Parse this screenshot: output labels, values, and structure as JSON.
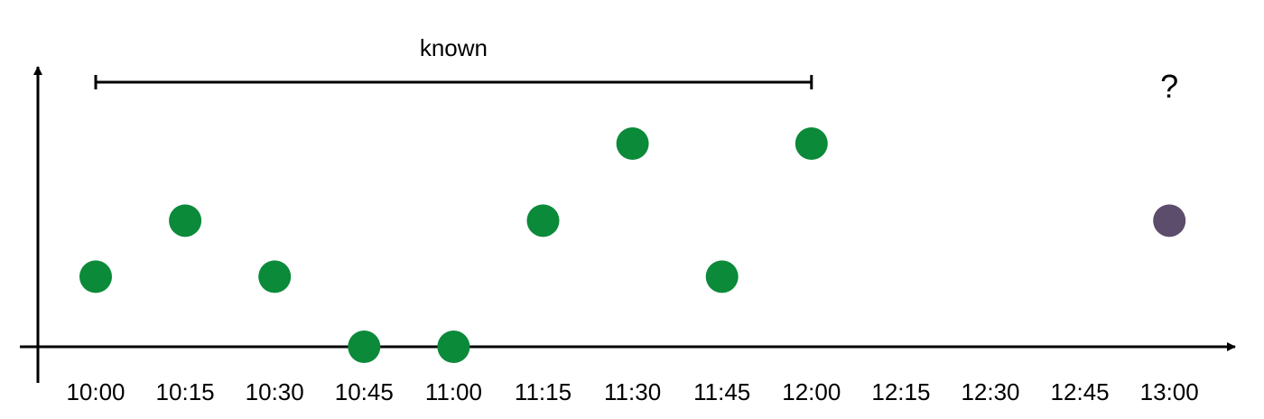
{
  "chart_data": {
    "type": "scatter",
    "title": "",
    "xlabel": "",
    "ylabel": "",
    "x_categories": [
      "10:00",
      "10:15",
      "10:30",
      "10:45",
      "11:00",
      "11:15",
      "11:30",
      "11:45",
      "12:00",
      "12:15",
      "12:30",
      "12:45",
      "13:00"
    ],
    "ylim": [
      0,
      3
    ],
    "grid": false,
    "known_points": [
      {
        "x": "10:00",
        "y": 1
      },
      {
        "x": "10:15",
        "y": 1.8
      },
      {
        "x": "10:30",
        "y": 1
      },
      {
        "x": "10:45",
        "y": 0
      },
      {
        "x": "11:00",
        "y": 0
      },
      {
        "x": "11:15",
        "y": 1.8
      },
      {
        "x": "11:30",
        "y": 2.9
      },
      {
        "x": "11:45",
        "y": 1
      },
      {
        "x": "12:00",
        "y": 2.9
      }
    ],
    "predicted_point": {
      "x": "13:00",
      "y": 1.8
    },
    "known_range": {
      "start": "10:00",
      "end": "12:00",
      "label": "known"
    },
    "unknown_label": "?",
    "colors": {
      "known": "#0b8a3a",
      "predicted": "#5b4d6b",
      "axis": "#000000"
    }
  }
}
